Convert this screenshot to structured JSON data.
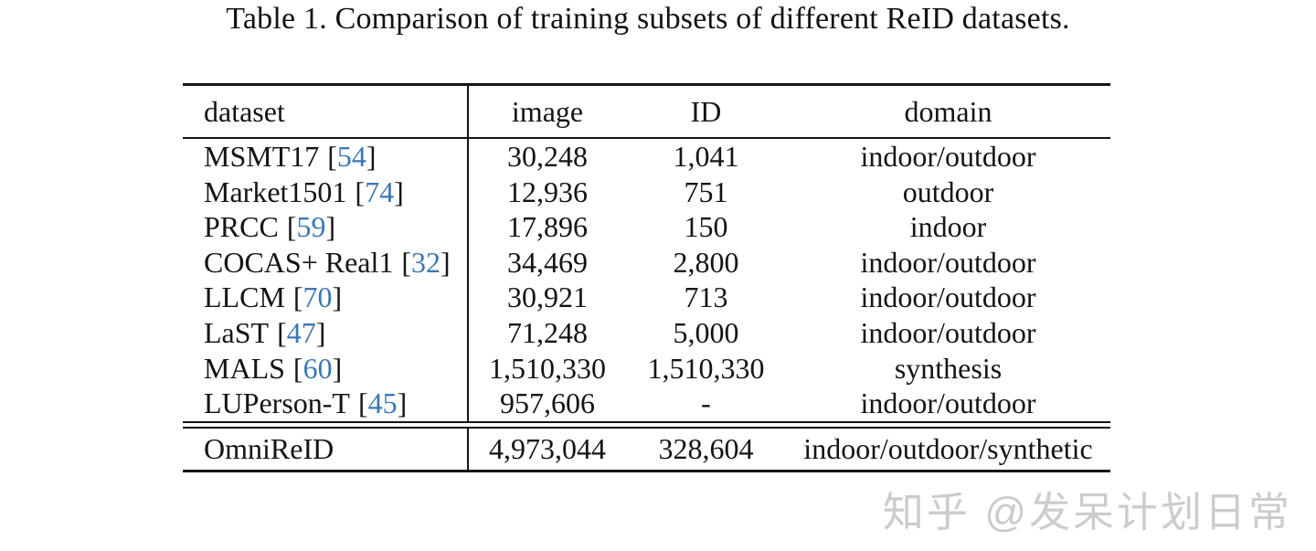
{
  "title": "Table 1. Comparison of training subsets of different ReID datasets.",
  "table": {
    "columns": [
      "dataset",
      "image",
      "ID",
      "domain"
    ],
    "rows": [
      {
        "name": "MSMT17",
        "ref": "54",
        "image": "30,248",
        "id": "1,041",
        "domain": "indoor/outdoor"
      },
      {
        "name": "Market1501",
        "ref": "74",
        "image": "12,936",
        "id": "751",
        "domain": "outdoor"
      },
      {
        "name": "PRCC",
        "ref": "59",
        "image": "17,896",
        "id": "150",
        "domain": "indoor"
      },
      {
        "name": "COCAS+ Real1",
        "ref": "32",
        "image": "34,469",
        "id": "2,800",
        "domain": "indoor/outdoor"
      },
      {
        "name": "LLCM",
        "ref": "70",
        "image": "30,921",
        "id": "713",
        "domain": "indoor/outdoor"
      },
      {
        "name": "LaST",
        "ref": "47",
        "image": "71,248",
        "id": "5,000",
        "domain": "indoor/outdoor"
      },
      {
        "name": "MALS",
        "ref": "60",
        "image": "1,510,330",
        "id": "1,510,330",
        "domain": "synthesis"
      },
      {
        "name": "LUPerson-T",
        "ref": "45",
        "image": "957,606",
        "id": "-",
        "domain": "indoor/outdoor"
      }
    ],
    "summary": {
      "name": "OmniReID",
      "image": "4,973,044",
      "id": "328,604",
      "domain": "indoor/outdoor/synthetic"
    }
  },
  "watermark": {
    "text": "知乎 @发呆计划日常"
  },
  "colors": {
    "citation_blue": "#3c77b4",
    "text": "#141414",
    "rule": "#151515",
    "watermark_gray": "#cccccc"
  }
}
